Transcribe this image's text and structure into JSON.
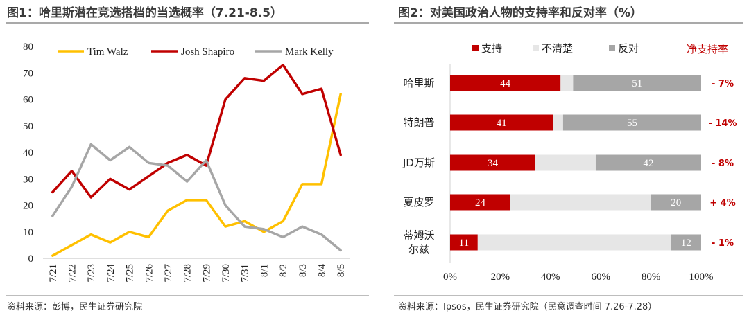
{
  "chart1": {
    "title": "图1：哈里斯潜在竞选搭档的当选概率（7.21-8.5）",
    "source": "资料来源：彭博，民生证券研究院",
    "chart_data": {
      "type": "line",
      "x": [
        "7/21",
        "7/22",
        "7/23",
        "7/24",
        "7/25",
        "7/26",
        "7/27",
        "7/28",
        "7/29",
        "7/30",
        "7/31",
        "8/1",
        "8/2",
        "8/3",
        "8/4",
        "8/5"
      ],
      "ylim": [
        0,
        80
      ],
      "yticks": [
        0,
        10,
        20,
        30,
        40,
        50,
        60,
        70,
        80
      ],
      "legend_position": "top",
      "series": [
        {
          "name": "Tim Walz",
          "color": "#ffc000",
          "values": [
            1,
            5,
            9,
            6,
            10,
            8,
            18,
            22,
            22,
            12,
            14,
            10,
            14,
            28,
            28,
            62
          ]
        },
        {
          "name": "Josh Shapiro",
          "color": "#c00000",
          "values": [
            25,
            33,
            23,
            30,
            26,
            31,
            36,
            39,
            35,
            60,
            68,
            67,
            73,
            62,
            64,
            39
          ]
        },
        {
          "name": "Mark Kelly",
          "color": "#a6a6a6",
          "values": [
            16,
            27,
            43,
            37,
            42,
            36,
            35,
            29,
            37,
            20,
            12,
            11,
            8,
            12,
            9,
            3
          ]
        }
      ]
    }
  },
  "chart2": {
    "title": "图2：对美国政治人物的支持率和反对率（%）",
    "source": "资料来源：Ipsos，民生证券研究院（民意调查时间 7.26-7.28）",
    "net_header": "净支持率",
    "chart_data": {
      "type": "bar",
      "orientation": "horizontal",
      "stacked": true,
      "categories": [
        "哈里斯",
        "特朗普",
        "JD万斯",
        "夏皮罗",
        "蒂姆沃尔兹"
      ],
      "category_lines": [
        [
          "哈里斯"
        ],
        [
          "特朗普"
        ],
        [
          "JD万斯"
        ],
        [
          "夏皮罗"
        ],
        [
          "蒂姆沃",
          "尔兹"
        ]
      ],
      "xlim": [
        0,
        100
      ],
      "xticks": [
        "0%",
        "20%",
        "40%",
        "60%",
        "80%",
        "100%"
      ],
      "legend_position": "top",
      "series": [
        {
          "name": "支持",
          "color": "#c00000",
          "values": [
            44,
            41,
            34,
            24,
            11
          ],
          "labels": [
            "44",
            "41",
            "34",
            "24",
            "11"
          ]
        },
        {
          "name": "不清楚",
          "color": "#e6e6e6",
          "values": [
            5,
            4,
            24,
            56,
            77
          ],
          "labels": [
            "",
            "",
            "",
            "",
            ""
          ]
        },
        {
          "name": "反对",
          "color": "#a6a6a6",
          "values": [
            51,
            55,
            42,
            20,
            12
          ],
          "labels": [
            "51",
            "55",
            "42",
            "20",
            "12"
          ]
        }
      ],
      "net_support": [
        "- 7%",
        "- 14%",
        "- 8%",
        "+ 4%",
        "- 1%"
      ]
    }
  }
}
